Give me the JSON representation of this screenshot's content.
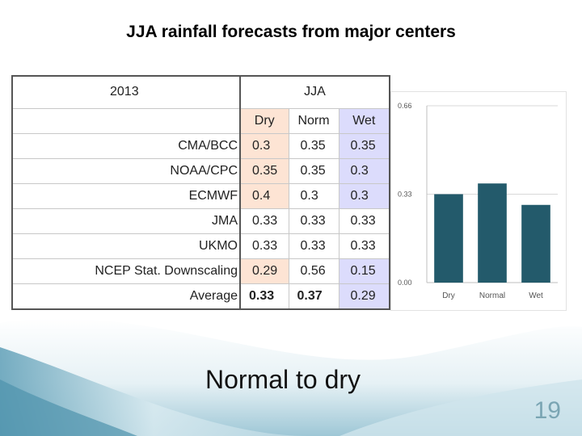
{
  "slide": {
    "title": "JJA rainfall forecasts from major centers",
    "subtitle": "Normal to dry",
    "page_number": "19"
  },
  "table": {
    "year": "2013",
    "season": "JJA",
    "columns": [
      "Dry",
      "Norm",
      "Wet"
    ],
    "rows": [
      {
        "center": "CMA/BCC",
        "values": [
          "0.3",
          "0.35",
          "0.35"
        ]
      },
      {
        "center": "NOAA/CPC",
        "values": [
          "0.35",
          "0.35",
          "0.3"
        ]
      },
      {
        "center": "ECMWF",
        "values": [
          "0.4",
          "0.3",
          "0.3"
        ]
      },
      {
        "center": "JMA",
        "values": [
          "0.33",
          "0.33",
          "0.33"
        ]
      },
      {
        "center": "UKMO",
        "values": [
          "0.33",
          "0.33",
          "0.33"
        ]
      },
      {
        "center": "NCEP Stat. Downscaling",
        "values": [
          "0.29",
          "0.56",
          "0.15"
        ]
      }
    ],
    "average": {
      "label": "Average",
      "values": [
        "0.33",
        "0.37",
        "0.29"
      ]
    }
  },
  "chart_data": {
    "type": "bar",
    "categories": [
      "Dry",
      "Normal",
      "Wet"
    ],
    "values": [
      0.33,
      0.37,
      0.29
    ],
    "ylim": [
      0,
      0.66
    ],
    "yticks": [
      "0.00",
      "0.33",
      "0.66"
    ],
    "title": "",
    "xlabel": "",
    "ylabel": "",
    "bar_color": "#235a6b",
    "grid": true
  },
  "colors": {
    "dry_fill": "#fde4d4",
    "wet_fill": "#dcdcfc",
    "page_number": "#7aa5b3"
  }
}
